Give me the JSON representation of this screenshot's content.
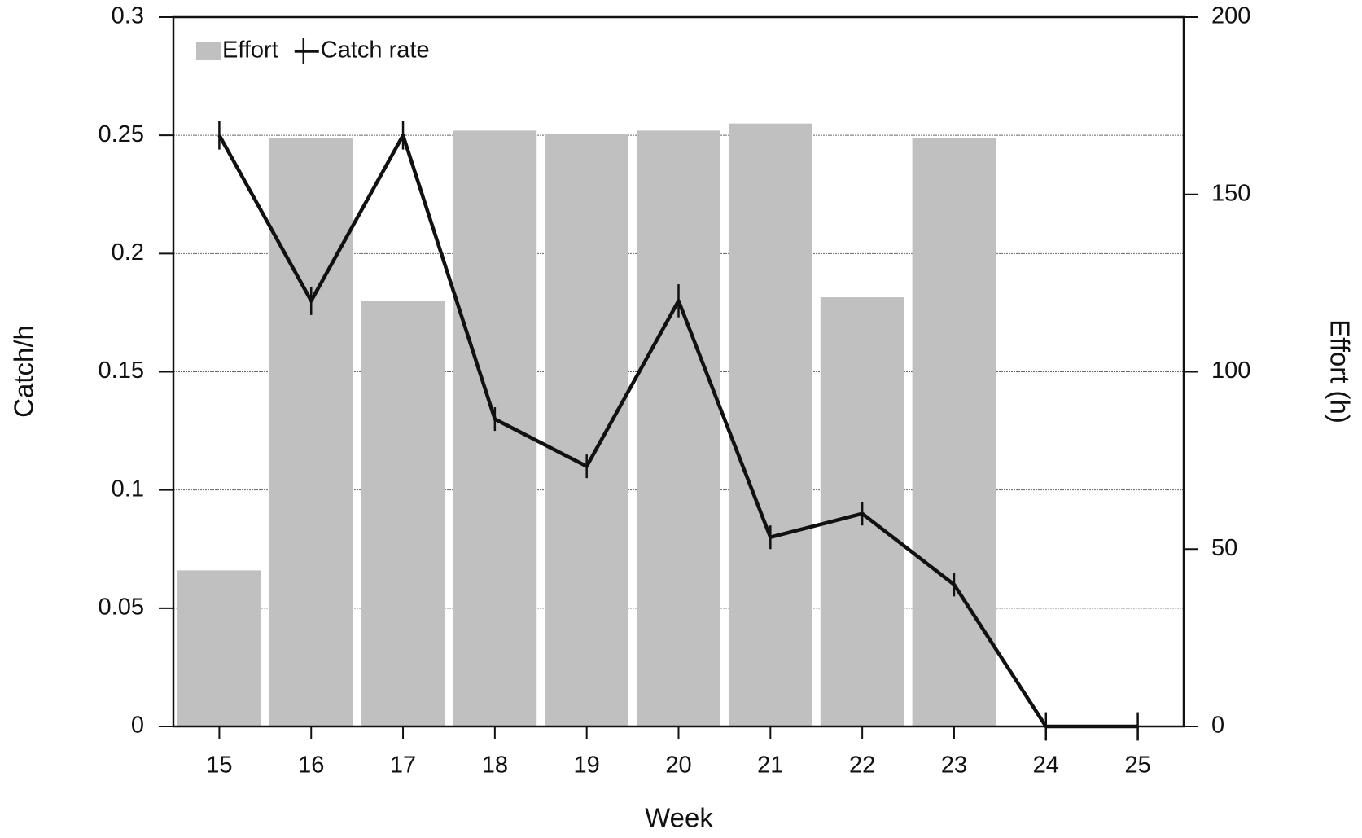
{
  "chart_data": {
    "type": "bar",
    "x_label": "Week",
    "y_label": "Catch/h",
    "y2_label": "Effort (h)",
    "categories": [
      "15",
      "16",
      "17",
      "18",
      "19",
      "20",
      "21",
      "22",
      "23",
      "24",
      "25"
    ],
    "series": [
      {
        "name": "Effort",
        "type": "bar",
        "axis": "y2",
        "color": "#c0c0c0",
        "values": [
          44,
          166,
          120,
          168,
          167,
          168,
          170,
          121,
          166,
          null,
          null
        ]
      },
      {
        "name": "Catch rate",
        "type": "line",
        "axis": "y",
        "color": "#111111",
        "values": [
          0.25,
          0.18,
          0.25,
          0.13,
          0.11,
          0.18,
          0.08,
          0.09,
          0.06,
          0,
          0
        ],
        "errors": [
          0.006,
          0.006,
          0.006,
          0.005,
          0.005,
          0.007,
          0.005,
          0.005,
          0.005,
          0.006,
          0.006
        ]
      }
    ],
    "ylim": [
      0,
      0.3
    ],
    "yticks": [
      0,
      0.05,
      0.1,
      0.15,
      0.2,
      0.25,
      0.3
    ],
    "y2lim": [
      0,
      200
    ],
    "y2ticks": [
      0,
      50,
      100,
      150,
      200
    ],
    "grid": true,
    "legend": "top-left"
  }
}
